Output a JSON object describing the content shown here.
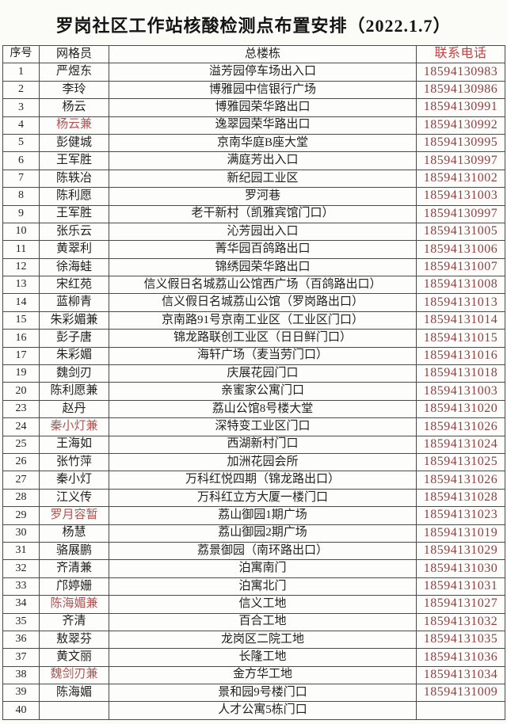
{
  "title": "罗岗社区工作站核酸检测点布置安排（2022.1.7）",
  "colors": {
    "phone_header_red": "#c24343",
    "phone_text_maroon": "#8f4040",
    "red_worker_name": "#b25252",
    "table_border": "#4a4a4a",
    "body_text": "#1f1f1f"
  },
  "table": {
    "headers": [
      "序号",
      "网格员",
      "总楼栋",
      "联系电话"
    ],
    "rows": [
      {
        "no": "1",
        "worker": "严煜东",
        "location": "溢芳园停车场出入口",
        "phone": "18594130983",
        "red": false
      },
      {
        "no": "2",
        "worker": "李玲",
        "location": "博雅园中信银行广场",
        "phone": "18594130986",
        "red": false
      },
      {
        "no": "3",
        "worker": "杨云",
        "location": "博雅园荣华路出口",
        "phone": "18594130991",
        "red": false
      },
      {
        "no": "4",
        "worker": "杨云兼",
        "location": "逸翠园荣华路出口",
        "phone": "18594130992",
        "red": true
      },
      {
        "no": "5",
        "worker": "彭健城",
        "location": "京南华庭B座大堂",
        "phone": "18594130995",
        "red": false
      },
      {
        "no": "6",
        "worker": "王军胜",
        "location": "满庭芳出入口",
        "phone": "18594130997",
        "red": false
      },
      {
        "no": "7",
        "worker": "陈轶冶",
        "location": "新纪园工业区",
        "phone": "18594131002",
        "red": false
      },
      {
        "no": "8",
        "worker": "陈利愿",
        "location": "罗河巷",
        "phone": "18594131003",
        "red": false
      },
      {
        "no": "9",
        "worker": "王军胜",
        "location": "老干新村（凯雅宾馆门口）",
        "phone": "18594130997",
        "red": false
      },
      {
        "no": "10",
        "worker": "张乐云",
        "location": "沁芳园出入口",
        "phone": "18594131005",
        "red": false
      },
      {
        "no": "11",
        "worker": "黄翠利",
        "location": "菁华园百鸽路出口",
        "phone": "18594131006",
        "red": false
      },
      {
        "no": "12",
        "worker": "徐海蛙",
        "location": "锦绣园荣华路出口",
        "phone": "18594131007",
        "red": false
      },
      {
        "no": "13",
        "worker": "宋红苑",
        "location": "信义假日名城荔山公馆西广场（百鸽路出口）",
        "phone": "18594131008",
        "red": false
      },
      {
        "no": "14",
        "worker": "蓝柳青",
        "location": "信义假日名城荔山公馆（罗岗路出口）",
        "phone": "18594131013",
        "red": false
      },
      {
        "no": "15",
        "worker": "朱彩媚兼",
        "location": "京南路91号京南工业区（工业区门口）",
        "phone": "18594131014",
        "red": false
      },
      {
        "no": "16",
        "worker": "彭子唐",
        "location": "锦龙路联创工业区（日日鲜门口）",
        "phone": "18594131015",
        "red": false
      },
      {
        "no": "17",
        "worker": "朱彩媚",
        "location": "海轩广场（麦当劳门口）",
        "phone": "18594131016",
        "red": false
      },
      {
        "no": "19",
        "worker": "魏剑刃",
        "location": "庆展花园门口",
        "phone": "18594131018",
        "red": false
      },
      {
        "no": "20",
        "worker": "陈利愿兼",
        "location": "亲蜜家公寓门口",
        "phone": "18594131003",
        "red": false
      },
      {
        "no": "23",
        "worker": "赵丹",
        "location": "荔山公馆8号楼大堂",
        "phone": "18594131020",
        "red": false
      },
      {
        "no": "24",
        "worker": "秦小灯兼",
        "location": "深特变工业区门口",
        "phone": "18594131026",
        "red": true
      },
      {
        "no": "25",
        "worker": "王海如",
        "location": "西湖新村门口",
        "phone": "18594131024",
        "red": false
      },
      {
        "no": "26",
        "worker": "张竹萍",
        "location": "加洲花园会所",
        "phone": "18594131025",
        "red": false
      },
      {
        "no": "27",
        "worker": "秦小灯",
        "location": "万科红悦四期（锦龙路出口）",
        "phone": "18594131026",
        "red": false
      },
      {
        "no": "28",
        "worker": "江义传",
        "location": "万科红立方大厦一楼门口",
        "phone": "18594131028",
        "red": false
      },
      {
        "no": "29",
        "worker": "罗月容暂",
        "location": "荔山御园1期广场",
        "phone": "18594131023",
        "red": true
      },
      {
        "no": "30",
        "worker": "杨慧",
        "location": "荔山御园2期广场",
        "phone": "18594131019",
        "red": false
      },
      {
        "no": "31",
        "worker": "骆展鹏",
        "location": "荔景御园（南环路出口）",
        "phone": "18594131029",
        "red": false
      },
      {
        "no": "32",
        "worker": "齐清兼",
        "location": "泊寓南门",
        "phone": "18594131030",
        "red": false
      },
      {
        "no": "33",
        "worker": "邝婷姗",
        "location": "泊寓北门",
        "phone": "18594131031",
        "red": false
      },
      {
        "no": "34",
        "worker": "陈海媚兼",
        "location": "信义工地",
        "phone": "18594131027",
        "red": true
      },
      {
        "no": "35",
        "worker": "齐清",
        "location": "百合工地",
        "phone": "18594131032",
        "red": false
      },
      {
        "no": "36",
        "worker": "敖翠芬",
        "location": "龙岗区二院工地",
        "phone": "18594131035",
        "red": false
      },
      {
        "no": "37",
        "worker": "黄文丽",
        "location": "长隆工地",
        "phone": "18594131036",
        "red": false
      },
      {
        "no": "38",
        "worker": "魏剑刃兼",
        "location": "金方华工地",
        "phone": "18594131034",
        "red": true
      },
      {
        "no": "39",
        "worker": "陈海媚",
        "location": "景和园9号楼门口",
        "phone": "18594131009",
        "red": false
      },
      {
        "no": "40",
        "worker": "",
        "location": "人才公寓5栋门口",
        "phone": "",
        "red": false
      }
    ]
  }
}
